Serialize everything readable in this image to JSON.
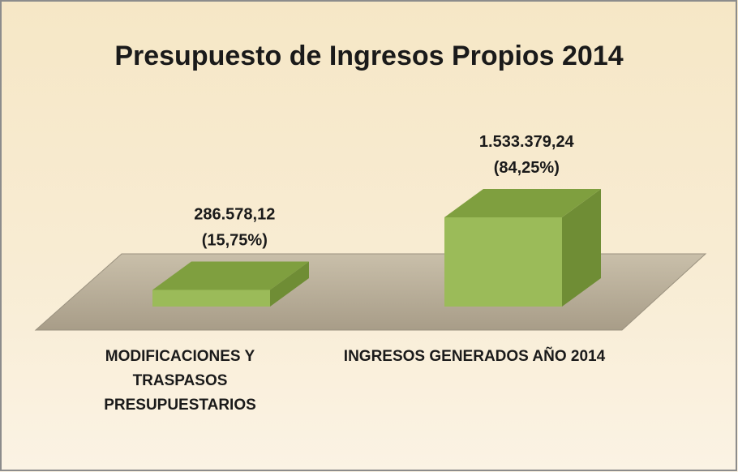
{
  "chart_data": {
    "type": "bar3d",
    "title": "Presupuesto de Ingresos Propios 2014",
    "categories": [
      "MODIFICACIONES Y TRASPASOS PRESUPUESTARIOS",
      "INGRESOS GENERADOS AÑO 2014"
    ],
    "values": [
      286578.12,
      1533379.24
    ],
    "value_labels": [
      "286.578,12",
      "1.533.379,24"
    ],
    "percentages": [
      15.75,
      84.25
    ],
    "percentage_labels": [
      "(15,75%)",
      "(84,25%)"
    ],
    "color": "#9bbb59"
  }
}
